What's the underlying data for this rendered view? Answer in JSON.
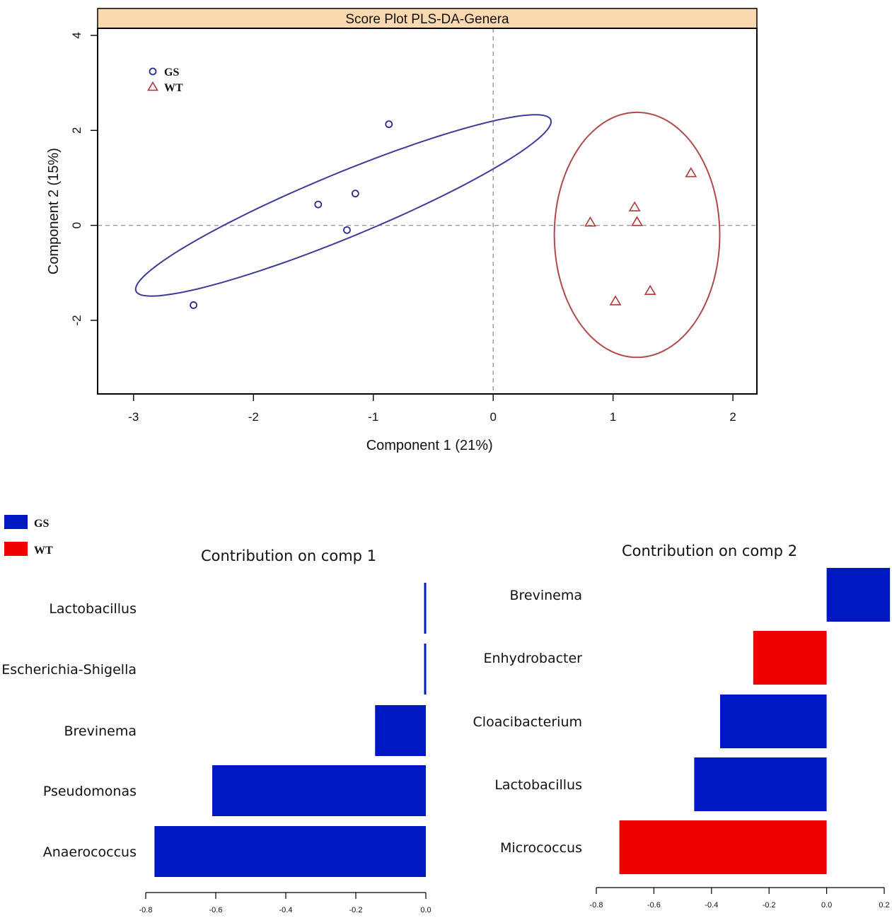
{
  "colors": {
    "gs_point": "#2a2a8e",
    "wt_point": "#b03a3a",
    "gs_ellipse": "#3b3b9a",
    "wt_ellipse": "#b04a4a",
    "header_fill": "#fbd9b0",
    "bar_gs": "#0018c4",
    "bar_wt": "#ee0000"
  },
  "chart_data": [
    {
      "type": "scatter",
      "title": "Score Plot PLS-DA-Genera",
      "xlabel": "Component 1 (21%)",
      "ylabel": "Component 2 (15%)",
      "xlim": [
        -3.3,
        2.2
      ],
      "ylim": [
        -3.55,
        4.15
      ],
      "xticks": [
        -3,
        -2,
        -1,
        0,
        1,
        2
      ],
      "yticks": [
        -2,
        0,
        2,
        4
      ],
      "reference_lines": {
        "x": 0,
        "y": 0
      },
      "legend": {
        "position": "top-left",
        "items": [
          {
            "name": "GS",
            "marker": "circle"
          },
          {
            "name": "WT",
            "marker": "triangle"
          }
        ]
      },
      "series": [
        {
          "name": "GS",
          "marker": "circle",
          "points": [
            {
              "x": -0.87,
              "y": 2.13
            },
            {
              "x": -1.15,
              "y": 0.67
            },
            {
              "x": -1.46,
              "y": 0.44
            },
            {
              "x": -1.22,
              "y": -0.1
            },
            {
              "x": -2.5,
              "y": -1.68
            }
          ],
          "ellipse": {
            "cx": -1.25,
            "cy": 0.42,
            "rx": 2.53,
            "ry": 0.5,
            "angle": 48
          }
        },
        {
          "name": "WT",
          "marker": "triangle",
          "points": [
            {
              "x": 1.65,
              "y": 1.1
            },
            {
              "x": 1.18,
              "y": 0.38
            },
            {
              "x": 1.2,
              "y": 0.07
            },
            {
              "x": 0.81,
              "y": 0.06
            },
            {
              "x": 1.31,
              "y": -1.38
            },
            {
              "x": 1.02,
              "y": -1.6
            }
          ],
          "ellipse": {
            "cx": 1.2,
            "cy": -0.2,
            "rx": 0.69,
            "ry": 2.58,
            "angle": 0
          }
        }
      ]
    },
    {
      "type": "bar",
      "orientation": "horizontal",
      "title": "Contribution on comp 1",
      "categories": [
        "Lactobacillus",
        "Escherichia-Shigella",
        "Brevinema",
        "Pseudomonas",
        "Anaerococcus"
      ],
      "values": [
        -0.005,
        -0.005,
        -0.145,
        -0.61,
        -0.775
      ],
      "groups": [
        "GS",
        "GS",
        "GS",
        "GS",
        "GS"
      ],
      "xlim": [
        -0.8,
        0.0
      ],
      "xticks": [
        "-0.8",
        "-0.6",
        "-0.4",
        "-0.2",
        "0.0"
      ]
    },
    {
      "type": "bar",
      "orientation": "horizontal",
      "title": "Contribution on comp 2",
      "categories": [
        "Brevinema",
        "Enhydrobacter",
        "Cloacibacterium",
        "Lactobacillus",
        "Micrococcus"
      ],
      "values": [
        0.22,
        -0.255,
        -0.37,
        -0.46,
        -0.72
      ],
      "groups": [
        "GS",
        "WT",
        "GS",
        "GS",
        "WT"
      ],
      "xlim": [
        -0.8,
        0.2
      ],
      "xticks": [
        "-0.8",
        "-0.6",
        "-0.4",
        "-0.2",
        "0.0",
        "0.2"
      ]
    }
  ],
  "bar_legend": {
    "position": "top-left",
    "items": [
      {
        "name": "GS",
        "color": "#0018c4"
      },
      {
        "name": "WT",
        "color": "#ee0000"
      }
    ]
  }
}
